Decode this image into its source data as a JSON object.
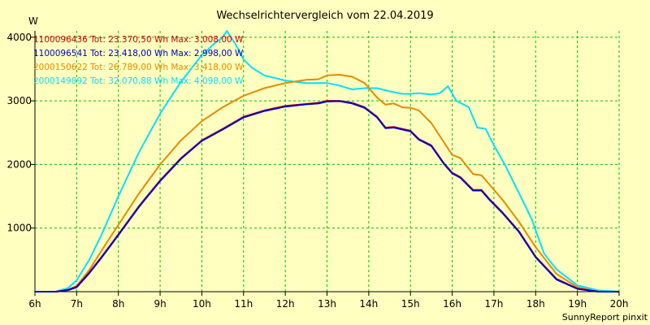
{
  "chart_data": {
    "type": "line",
    "title": "Wechselrichtervergleich vom 22.04.2019",
    "ylabel": "W",
    "footer": "SunnyReport pinxit",
    "xlim": [
      6,
      20
    ],
    "ylim": [
      0,
      4100
    ],
    "x_ticks": [
      6,
      7,
      8,
      9,
      10,
      11,
      12,
      13,
      14,
      15,
      16,
      17,
      18,
      19,
      20
    ],
    "x_tick_labels": [
      "6h",
      "7h",
      "8h",
      "9h",
      "10h",
      "11h",
      "12h",
      "13h",
      "14h",
      "15h",
      "16h",
      "17h",
      "18h",
      "19h",
      "20h"
    ],
    "y_ticks": [
      1000,
      2000,
      3000,
      4000
    ],
    "y_tick_labels": [
      "1000",
      "2000",
      "3000",
      "4000"
    ],
    "grid": true,
    "legend_position": "top-left",
    "series": [
      {
        "name": "1100096436",
        "legend": "1100096436 Tot: 23.370,50 Wh Max: 3.008,00 W",
        "color": "#cc0000",
        "x": [
          6.0,
          6.5,
          6.8,
          7.0,
          7.3,
          7.6,
          8.0,
          8.5,
          9.0,
          9.5,
          10.0,
          10.5,
          11.0,
          11.5,
          12.0,
          12.5,
          12.8,
          13.0,
          13.3,
          13.6,
          13.9,
          14.2,
          14.4,
          14.6,
          14.8,
          15.0,
          15.2,
          15.5,
          15.8,
          16.0,
          16.2,
          16.5,
          16.7,
          16.9,
          17.2,
          17.6,
          18.0,
          18.5,
          19.0,
          19.5,
          20.0
        ],
        "y": [
          0,
          0,
          30,
          80,
          300,
          550,
          900,
          1350,
          1750,
          2100,
          2380,
          2560,
          2750,
          2850,
          2920,
          2950,
          2970,
          3000,
          3000,
          2970,
          2900,
          2750,
          2580,
          2590,
          2560,
          2530,
          2400,
          2300,
          2020,
          1870,
          1800,
          1600,
          1600,
          1450,
          1250,
          950,
          550,
          200,
          50,
          0,
          0
        ]
      },
      {
        "name": "1100096541",
        "legend": "1100096541 Tot: 23.418,00 Wh Max: 2.998,00 W",
        "color": "#0000cc",
        "x": [
          6.0,
          6.5,
          6.8,
          7.0,
          7.3,
          7.6,
          8.0,
          8.5,
          9.0,
          9.5,
          10.0,
          10.5,
          11.0,
          11.5,
          12.0,
          12.5,
          12.8,
          13.0,
          13.3,
          13.6,
          13.9,
          14.2,
          14.4,
          14.6,
          14.8,
          15.0,
          15.2,
          15.5,
          15.8,
          16.0,
          16.2,
          16.5,
          16.7,
          16.9,
          17.2,
          17.6,
          18.0,
          18.5,
          19.0,
          19.5,
          20.0
        ],
        "y": [
          0,
          0,
          25,
          70,
          290,
          540,
          890,
          1340,
          1740,
          2090,
          2370,
          2550,
          2740,
          2840,
          2910,
          2945,
          2960,
          2990,
          2995,
          2960,
          2890,
          2740,
          2570,
          2580,
          2550,
          2520,
          2390,
          2290,
          2010,
          1860,
          1790,
          1590,
          1590,
          1440,
          1240,
          940,
          540,
          190,
          45,
          0,
          0
        ]
      },
      {
        "name": "2000150622",
        "legend": "2000150622 Tot: 26.789,00 Wh Max: 3.418,00 W",
        "color": "#e68a00",
        "x": [
          6.0,
          6.5,
          6.8,
          7.0,
          7.3,
          7.6,
          8.0,
          8.5,
          9.0,
          9.5,
          10.0,
          10.5,
          11.0,
          11.5,
          12.0,
          12.5,
          12.8,
          13.0,
          13.3,
          13.6,
          13.9,
          14.2,
          14.4,
          14.6,
          14.8,
          15.0,
          15.2,
          15.5,
          15.8,
          16.0,
          16.2,
          16.5,
          16.7,
          16.9,
          17.2,
          17.6,
          18.0,
          18.5,
          19.0,
          19.5,
          20.0
        ],
        "y": [
          0,
          0,
          35,
          90,
          340,
          650,
          1050,
          1550,
          2000,
          2380,
          2680,
          2900,
          3080,
          3200,
          3280,
          3330,
          3340,
          3400,
          3410,
          3380,
          3280,
          3050,
          2940,
          2960,
          2900,
          2890,
          2850,
          2650,
          2350,
          2150,
          2100,
          1850,
          1830,
          1680,
          1450,
          1100,
          700,
          280,
          70,
          0,
          0
        ]
      },
      {
        "name": "2000149892",
        "legend": "2000149892 Tot: 32.070,88 Wh Max: 4.098,00 W",
        "color": "#00e0ff",
        "x": [
          6.0,
          6.5,
          6.8,
          7.0,
          7.3,
          7.6,
          8.0,
          8.5,
          9.0,
          9.5,
          10.0,
          10.3,
          10.5,
          10.6,
          10.8,
          11.0,
          11.2,
          11.5,
          12.0,
          12.5,
          13.0,
          13.3,
          13.6,
          13.9,
          14.2,
          14.5,
          14.8,
          15.0,
          15.2,
          15.5,
          15.7,
          15.9,
          16.1,
          16.4,
          16.6,
          16.8,
          17.0,
          17.3,
          17.6,
          17.9,
          18.2,
          18.5,
          19.0,
          19.5,
          20.0
        ],
        "y": [
          0,
          0,
          60,
          180,
          500,
          900,
          1500,
          2200,
          2800,
          3300,
          3720,
          3900,
          4000,
          4100,
          3900,
          3650,
          3520,
          3400,
          3320,
          3280,
          3280,
          3240,
          3180,
          3200,
          3200,
          3150,
          3110,
          3110,
          3120,
          3100,
          3120,
          3230,
          3000,
          2900,
          2580,
          2560,
          2300,
          1950,
          1550,
          1150,
          600,
          350,
          100,
          20,
          0
        ]
      }
    ]
  }
}
